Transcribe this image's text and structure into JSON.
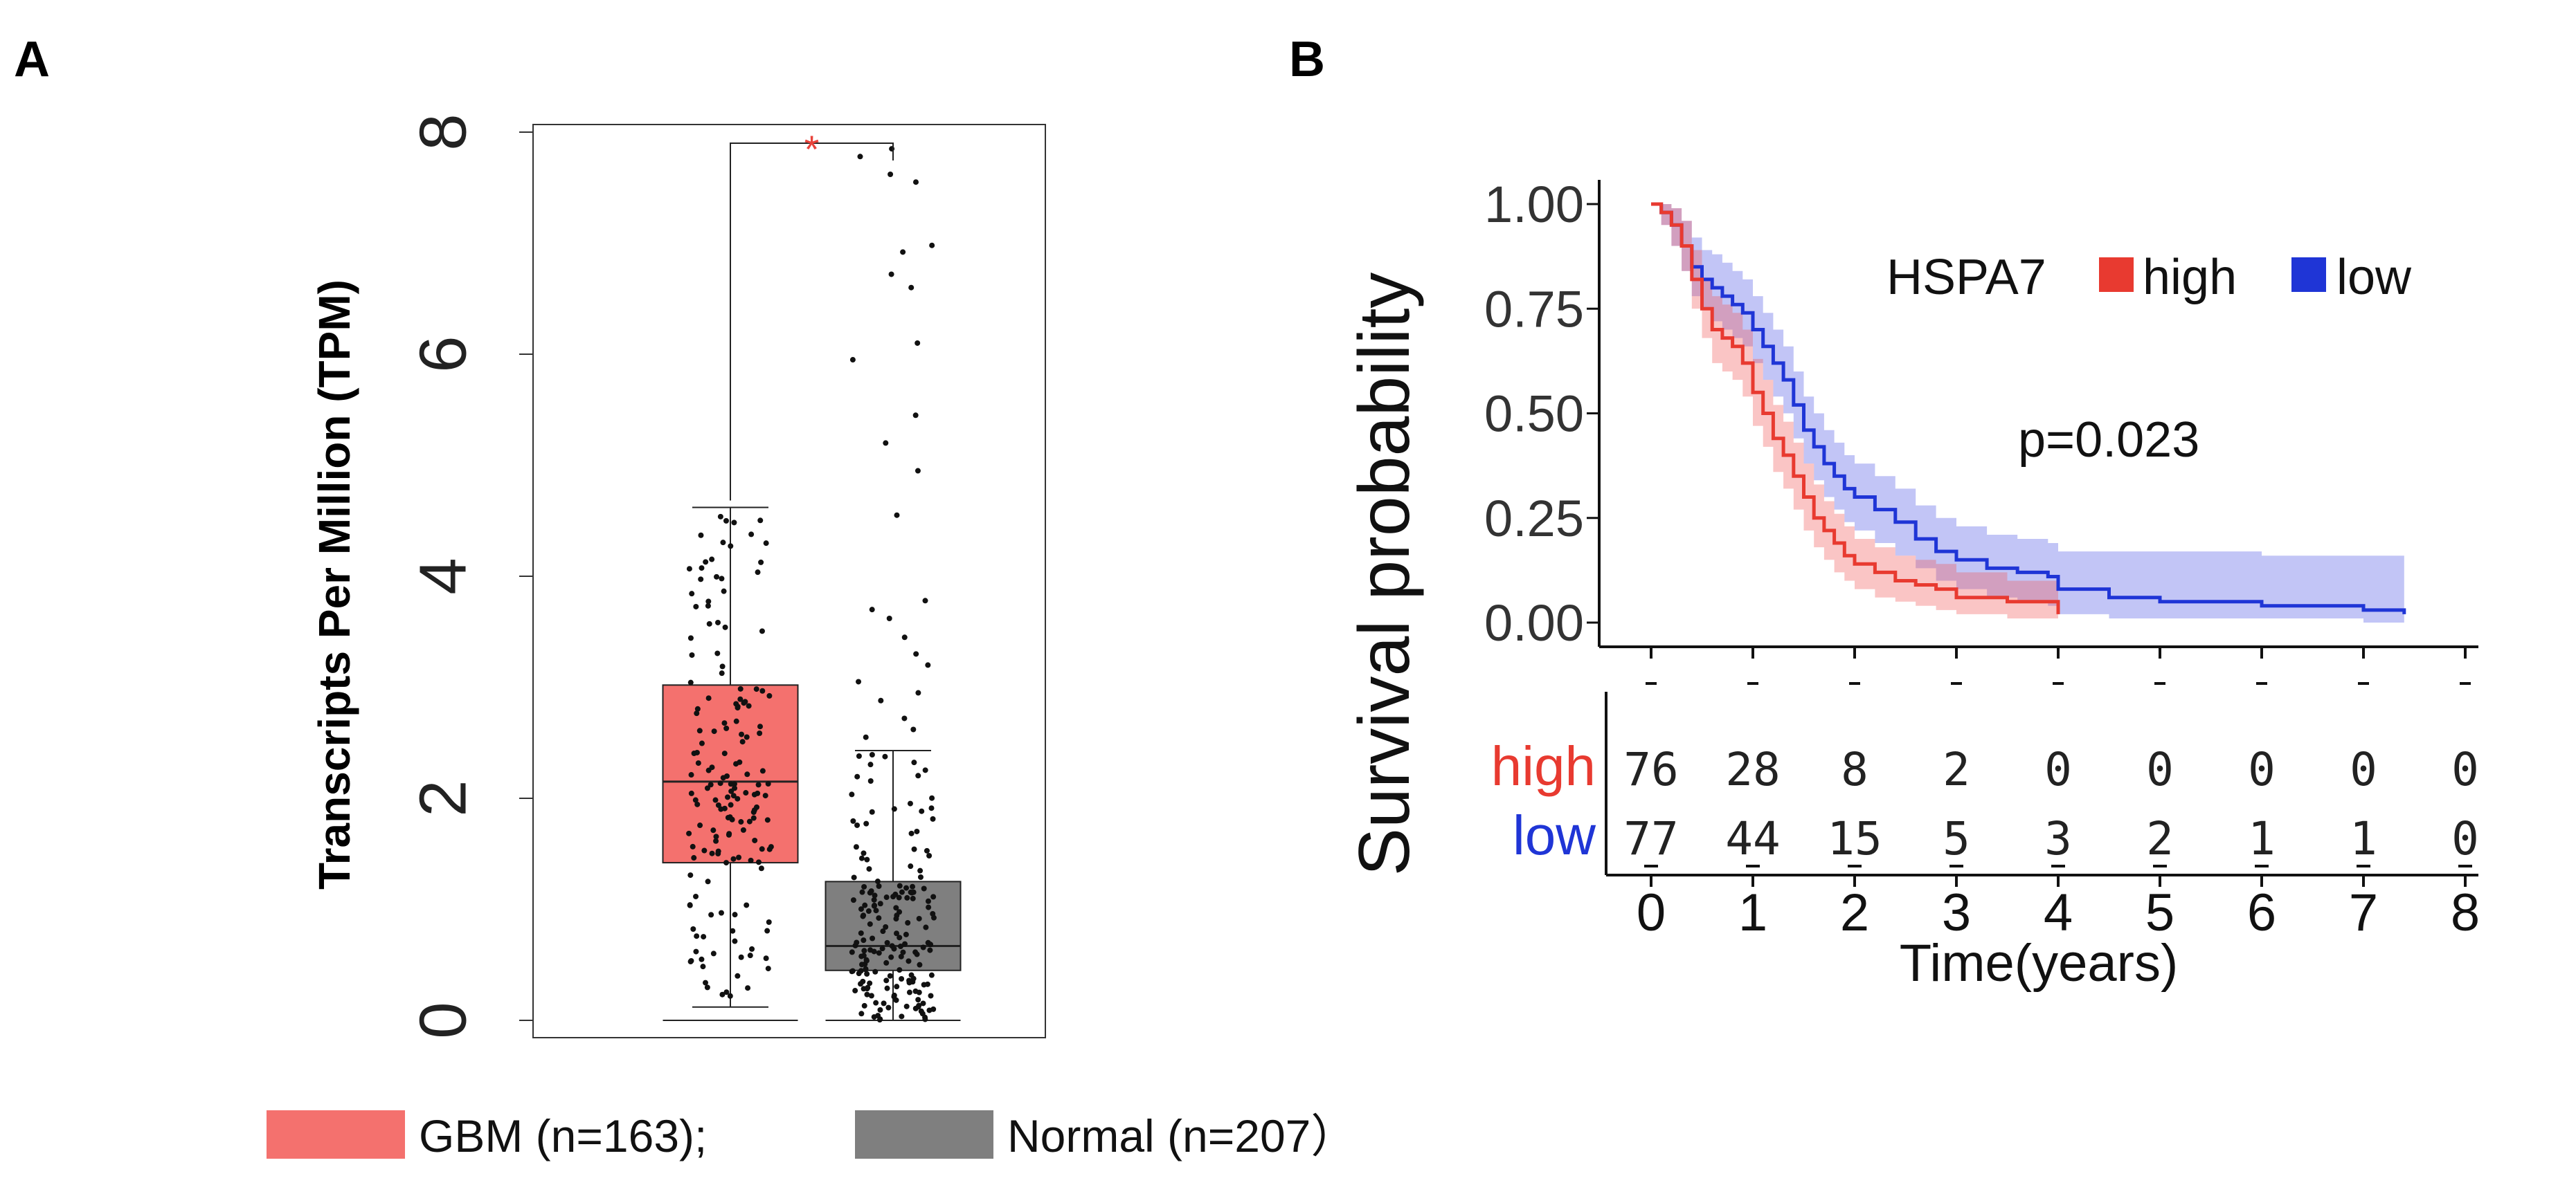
{
  "panels": {
    "a_letter": "A",
    "b_letter": "B"
  },
  "chart_data": [
    {
      "type": "box",
      "ylabel": "Transcripts Per Million (TPM)",
      "ylim": [
        0,
        8.3
      ],
      "yticks": [
        "0",
        "2",
        "4",
        "6",
        "8"
      ],
      "ytick_values": [
        0,
        2,
        4,
        6,
        8
      ],
      "significance": "*",
      "groups": [
        {
          "name": "GBM",
          "legend": "GBM (n=163);",
          "color": "#F4716E",
          "q1": 1.42,
          "median": 2.15,
          "q3": 3.02,
          "whisker_low": 0.12,
          "whisker_high": 4.62,
          "min_line": 0.0
        },
        {
          "name": "Normal",
          "legend": "Normal (n=207）",
          "color": "#7F7F7F",
          "q1": 0.45,
          "median": 0.67,
          "q3": 1.25,
          "whisker_low": 0.0,
          "whisker_high": 2.43,
          "min_line": 0.0
        }
      ],
      "normal_outliers": [
        7.85,
        7.78,
        7.62,
        7.55,
        6.98,
        6.92,
        6.72,
        6.6,
        6.1,
        5.95,
        5.45,
        5.2,
        4.95,
        4.55,
        3.78,
        3.7,
        3.62,
        3.45,
        3.3,
        3.2,
        3.05,
        2.95,
        2.88,
        2.72,
        2.62,
        2.55
      ]
    },
    {
      "type": "km",
      "ylabel": "Survival probability",
      "xlabel": "Time(years)",
      "yticks": [
        "1.00",
        "0.75",
        "0.50",
        "0.25",
        "0.00"
      ],
      "ytick_values": [
        1.0,
        0.75,
        0.5,
        0.25,
        0.0
      ],
      "xticks": [
        "0",
        "1",
        "2",
        "3",
        "4",
        "5",
        "6",
        "7",
        "8"
      ],
      "xlim": [
        0,
        8
      ],
      "legend_title": "HSPA7",
      "pvalue": "p=0.023",
      "series": [
        {
          "name": "high",
          "color": "#E83A30",
          "x": [
            0,
            0.1,
            0.2,
            0.3,
            0.4,
            0.5,
            0.6,
            0.7,
            0.8,
            0.9,
            1.0,
            1.1,
            1.2,
            1.3,
            1.4,
            1.5,
            1.6,
            1.7,
            1.8,
            1.9,
            2.0,
            2.2,
            2.4,
            2.6,
            2.8,
            3.0,
            3.5,
            4.0
          ],
          "y": [
            1.0,
            0.98,
            0.95,
            0.9,
            0.82,
            0.75,
            0.7,
            0.68,
            0.66,
            0.62,
            0.55,
            0.5,
            0.44,
            0.4,
            0.35,
            0.3,
            0.25,
            0.22,
            0.19,
            0.16,
            0.14,
            0.12,
            0.1,
            0.09,
            0.08,
            0.06,
            0.05,
            0.02
          ],
          "lower": [
            1.0,
            0.95,
            0.9,
            0.84,
            0.75,
            0.68,
            0.62,
            0.6,
            0.58,
            0.54,
            0.47,
            0.42,
            0.36,
            0.32,
            0.27,
            0.22,
            0.18,
            0.15,
            0.12,
            0.1,
            0.08,
            0.06,
            0.05,
            0.04,
            0.03,
            0.02,
            0.01,
            0.0
          ],
          "upper": [
            1.0,
            1.0,
            0.99,
            0.96,
            0.89,
            0.82,
            0.78,
            0.76,
            0.74,
            0.7,
            0.63,
            0.58,
            0.52,
            0.48,
            0.43,
            0.38,
            0.33,
            0.29,
            0.26,
            0.23,
            0.2,
            0.18,
            0.16,
            0.15,
            0.14,
            0.12,
            0.1,
            0.06
          ]
        },
        {
          "name": "low",
          "color": "#1F35D6",
          "x": [
            0,
            0.1,
            0.2,
            0.3,
            0.4,
            0.5,
            0.6,
            0.7,
            0.8,
            0.9,
            1.0,
            1.1,
            1.2,
            1.3,
            1.4,
            1.5,
            1.6,
            1.7,
            1.8,
            1.9,
            2.0,
            2.2,
            2.4,
            2.6,
            2.8,
            3.0,
            3.3,
            3.6,
            3.9,
            4.0,
            4.5,
            5.0,
            6.0,
            7.0,
            7.4
          ],
          "y": [
            1.0,
            0.98,
            0.95,
            0.9,
            0.85,
            0.82,
            0.8,
            0.78,
            0.76,
            0.74,
            0.7,
            0.66,
            0.62,
            0.58,
            0.52,
            0.46,
            0.42,
            0.38,
            0.35,
            0.32,
            0.3,
            0.27,
            0.24,
            0.2,
            0.17,
            0.15,
            0.13,
            0.12,
            0.11,
            0.08,
            0.06,
            0.05,
            0.04,
            0.03,
            0.02
          ],
          "lower": [
            1.0,
            0.95,
            0.9,
            0.84,
            0.78,
            0.75,
            0.72,
            0.7,
            0.68,
            0.66,
            0.62,
            0.58,
            0.54,
            0.5,
            0.44,
            0.38,
            0.34,
            0.3,
            0.27,
            0.24,
            0.22,
            0.19,
            0.16,
            0.13,
            0.1,
            0.08,
            0.06,
            0.05,
            0.04,
            0.02,
            0.01,
            0.01,
            0.01,
            0.0,
            0.0
          ],
          "upper": [
            1.0,
            1.0,
            0.99,
            0.96,
            0.92,
            0.89,
            0.88,
            0.86,
            0.84,
            0.82,
            0.78,
            0.74,
            0.7,
            0.66,
            0.6,
            0.54,
            0.5,
            0.46,
            0.43,
            0.4,
            0.38,
            0.35,
            0.32,
            0.28,
            0.25,
            0.23,
            0.21,
            0.2,
            0.19,
            0.17,
            0.17,
            0.17,
            0.16,
            0.16,
            0.16
          ]
        }
      ],
      "risk_table": {
        "times": [
          0,
          1,
          2,
          3,
          4,
          5,
          6,
          7,
          8
        ],
        "rows": [
          {
            "label": "high",
            "color": "#E83A30",
            "counts": [
              "76",
              "28",
              "8",
              "2",
              "0",
              "0",
              "0",
              "0",
              "0"
            ]
          },
          {
            "label": "low",
            "color": "#1F35D6",
            "counts": [
              "77",
              "44",
              "15",
              "5",
              "3",
              "2",
              "1",
              "1",
              "0"
            ]
          }
        ]
      }
    }
  ]
}
